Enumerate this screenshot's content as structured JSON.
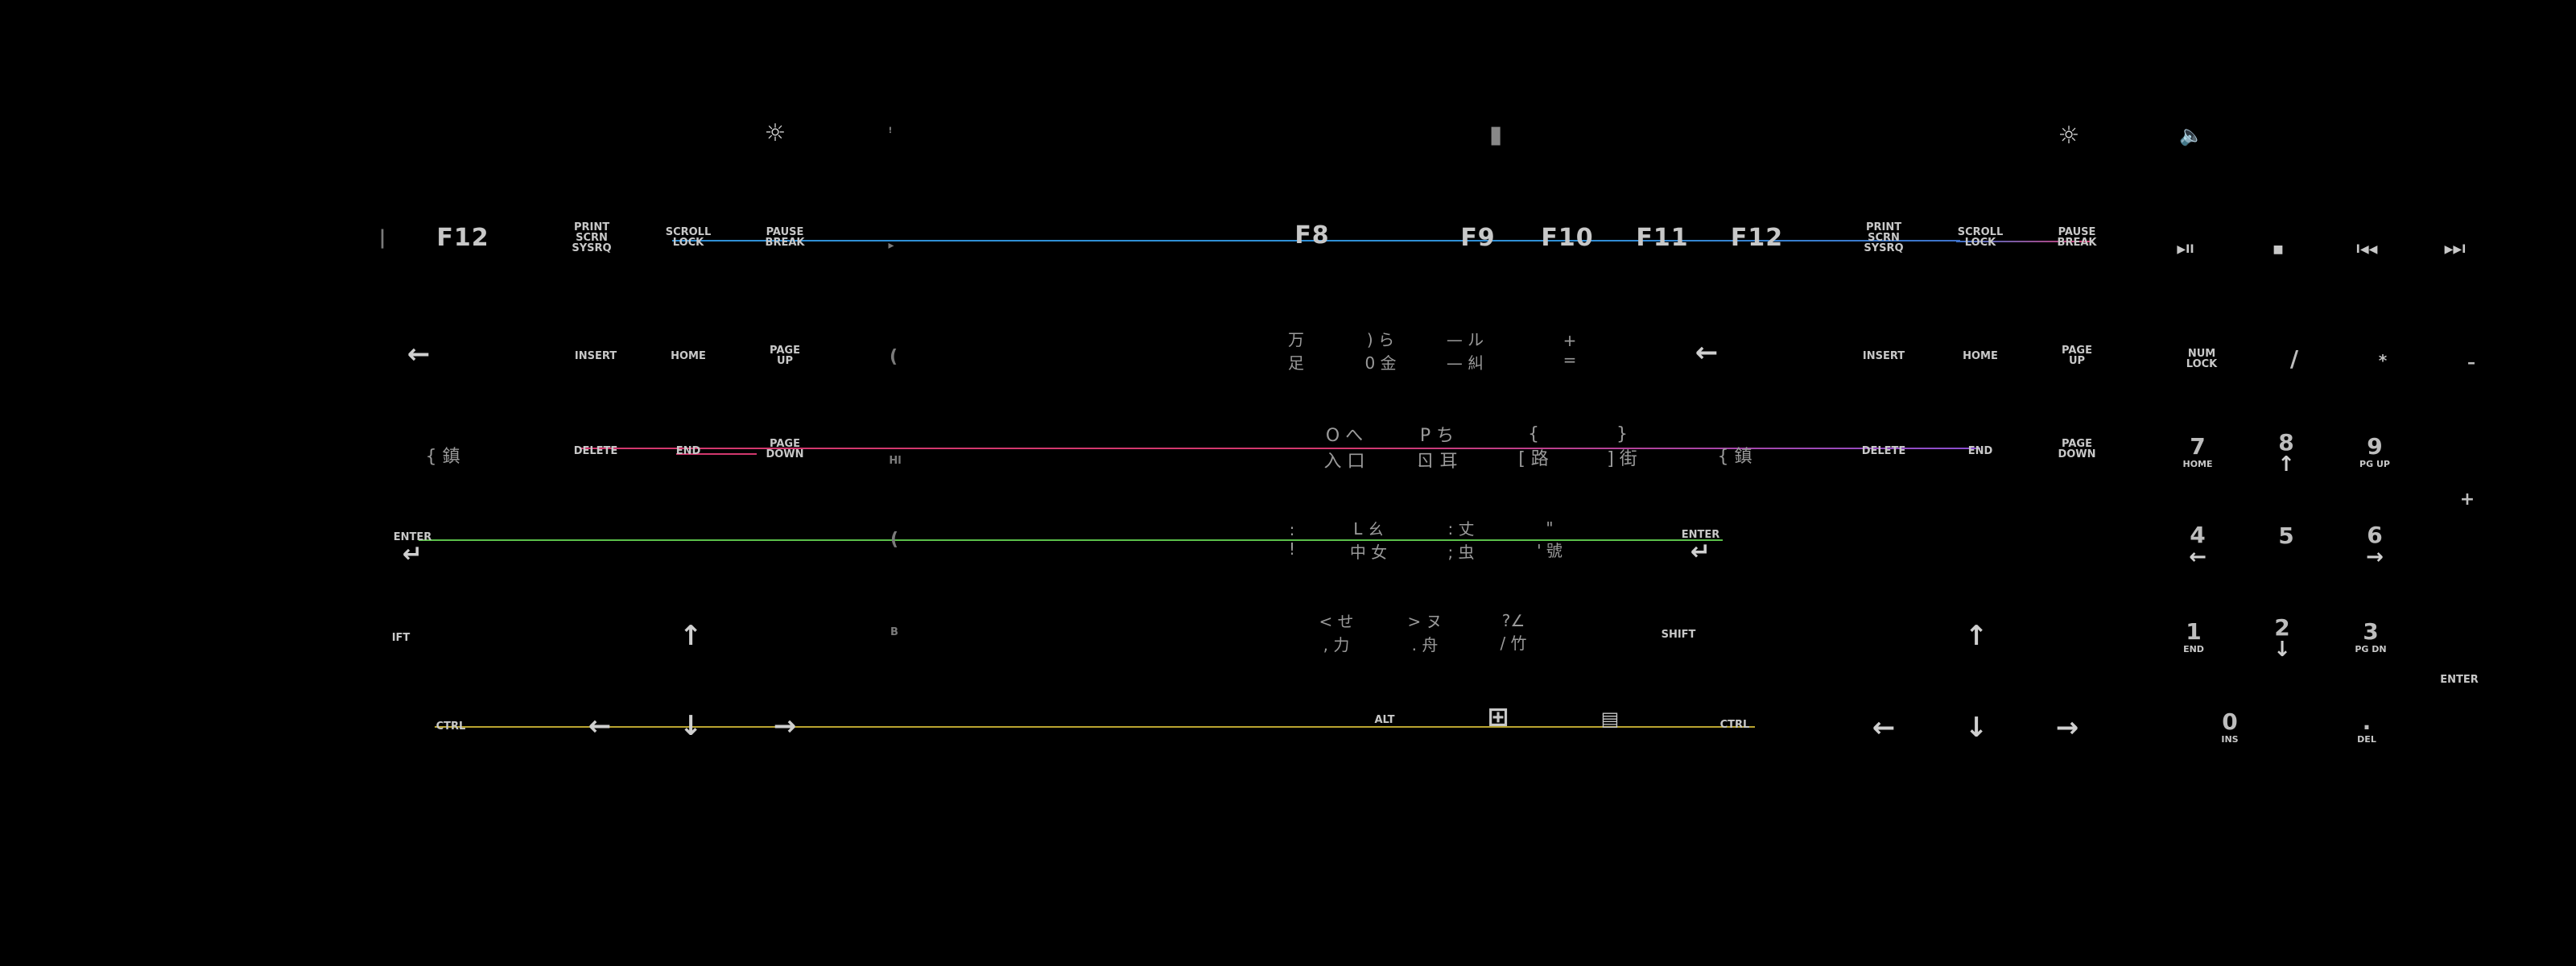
{
  "colors": {
    "background": "#000000",
    "lightbar_blue": "#2f8fd6",
    "lightbar_pink": "#d2386e",
    "lightbar_purple": "#8a4fd0",
    "lightbar_green": "#5bbf4a",
    "lightbar_yellow": "#b8a430",
    "key_legend": "#c8c8c8"
  },
  "media_row": {
    "brightness_left": "☼",
    "brightness_right": "☼",
    "mute": "🔈",
    "center_mark": "▮",
    "small_mark": "ꜝ"
  },
  "function_row": {
    "left_f12": "F12",
    "left_print": [
      "PRINT",
      "SCRN",
      "SYSRQ"
    ],
    "left_scroll": [
      "SCROLL",
      "LOCK"
    ],
    "left_pause": [
      "PAUSE",
      "BREAK"
    ],
    "f8": "F8",
    "f9": "F9",
    "f10": "F10",
    "f11": "F11",
    "f12": "F12",
    "right_print": [
      "PRINT",
      "SCRN",
      "SYSRQ"
    ],
    "right_scroll": [
      "SCROLL",
      "LOCK"
    ],
    "right_pause": [
      "PAUSE",
      "BREAK"
    ],
    "media_play": "▶II",
    "media_stop": "■",
    "media_prev": "I◀◀",
    "media_next": "▶▶I"
  },
  "row_number": {
    "left_backspace": "←",
    "left_insert": "INSERT",
    "left_home": "HOME",
    "left_pageup": [
      "PAGE",
      "UP"
    ],
    "cjk_top": [
      "万",
      ") ら",
      "— ル",
      "+"
    ],
    "cjk_bot": [
      "足",
      "0 金",
      "— 糾",
      "="
    ],
    "right_backspace": "←",
    "right_insert": "INSERT",
    "right_home": "HOME",
    "right_pageup": [
      "PAGE",
      "UP"
    ],
    "numlock": [
      "NUM",
      "LOCK"
    ],
    "divide": "/",
    "multiply": "*",
    "minus": "–"
  },
  "row_qwerty": {
    "left_bracket": "{ 鎮",
    "left_delete": "DELETE",
    "left_end": "END",
    "left_pagedown": [
      "PAGE",
      "DOWN"
    ],
    "cjk_top": [
      "O へ",
      "P ち",
      "{",
      "}"
    ],
    "cjk_bot": [
      "入 口",
      "ㄖ 耳",
      "[ 路",
      "] 街"
    ],
    "right_bracket": "{ 鎮",
    "right_delete": "DELETE",
    "right_end": "END",
    "right_pagedown": [
      "PAGE",
      "DOWN"
    ],
    "n7": [
      "7",
      "HOME"
    ],
    "n8": [
      "8",
      "↑"
    ],
    "n9": [
      "9",
      "PG UP"
    ],
    "plus": "+"
  },
  "row_home": {
    "left_enter": [
      "ENTER",
      "↵"
    ],
    "cjk_top": [
      ":",
      "L ㄠ",
      ": 丈",
      "\""
    ],
    "cjk_bot": [
      "!",
      "中 女",
      "; 虫",
      "' 號"
    ],
    "right_enter": [
      "ENTER",
      "↵"
    ],
    "n4": [
      "4",
      "←"
    ],
    "n5": "5",
    "n6": [
      "6",
      "→"
    ]
  },
  "row_shift": {
    "left_shift": "IFT",
    "left_up": "↑",
    "cjk_top": [
      "< せ",
      "> ヌ",
      "?∠"
    ],
    "cjk_bot": [
      ", 力",
      ". 舟",
      "/ 竹"
    ],
    "right_shift": "SHIFT",
    "right_up": "↑",
    "n1": [
      "1",
      "END"
    ],
    "n2": [
      "2",
      "↓"
    ],
    "n3": [
      "3",
      "PG DN"
    ],
    "numenter": "ENTER"
  },
  "row_bottom": {
    "left_ctrl": "CTRL",
    "left_left": "←",
    "left_down": "↓",
    "left_right": "→",
    "alt": "ALT",
    "win": "⊞",
    "menu": "▤",
    "right_ctrl": "CTRL",
    "right_left": "←",
    "right_down": "↓",
    "right_right": "→",
    "n0": [
      "0",
      "INS"
    ],
    "ndot": [
      ".",
      "DEL"
    ]
  },
  "fragments": {
    "a": "(",
    "b": "▸",
    "c": "Hl",
    "d": "B"
  }
}
